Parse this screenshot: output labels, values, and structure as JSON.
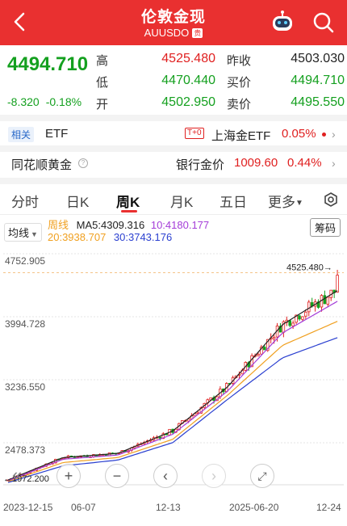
{
  "header": {
    "title": "伦敦金现",
    "code": "AUUSDO",
    "tag": "贵"
  },
  "quote": {
    "price": "4494.710",
    "change": "-8.320",
    "change_pct": "-0.18%",
    "high_label": "高",
    "high": "4525.480",
    "low_label": "低",
    "low": "4470.440",
    "open_label": "开",
    "open": "4502.950",
    "prev_close_label": "昨收",
    "prev_close": "4503.030",
    "bid_label": "买价",
    "bid": "4494.710",
    "ask_label": "卖价",
    "ask": "4495.550"
  },
  "related": {
    "tag": "相关",
    "etf": "ETF",
    "t0": "T+0",
    "sh_etf": "上海金ETF",
    "sh_pct": "0.05%"
  },
  "gold": {
    "name": "同花顺黄金",
    "bank_label": "银行金价",
    "bank_price": "1009.60",
    "bank_pct": "0.44%"
  },
  "tabs": [
    "分时",
    "日K",
    "周K",
    "月K",
    "五日",
    "更多"
  ],
  "indicator": {
    "selector": "均线",
    "button": "筹码",
    "ma_label": "周线",
    "ma5": "MA5:4309.316",
    "ma10": "10:4180.177",
    "ma20": "20:3938.707",
    "ma30": "30:3743.176"
  },
  "colors": {
    "up": "#e02020",
    "down": "#14a01f",
    "ma5": "#222222",
    "ma10": "#a43cd8",
    "ma20": "#f0a020",
    "ma30": "#2a3fd0",
    "header": "#e93030"
  },
  "chart_data": {
    "type": "candlestick",
    "y_ticks": [
      "4752.905",
      "3994.728",
      "3236.550",
      "2478.373"
    ],
    "ylim": [
      1972.2,
      4752.905
    ],
    "high_marker": "4525.480",
    "low_marker": "1972.200",
    "x_labels": [
      "2023-12-15",
      "06-07",
      "12-13",
      "2025-06-20",
      "12-24"
    ],
    "series": [
      {
        "name": "MA5",
        "values": [
          2030,
          2300,
          2350,
          2620,
          3150,
          3900,
          4309
        ]
      },
      {
        "name": "MA10",
        "values": [
          2020,
          2280,
          2330,
          2580,
          3100,
          3800,
          4180
        ]
      },
      {
        "name": "MA20",
        "values": [
          2010,
          2240,
          2300,
          2520,
          3050,
          3650,
          3939
        ]
      },
      {
        "name": "MA30",
        "values": [
          2000,
          2200,
          2270,
          2480,
          3000,
          3500,
          3743
        ]
      }
    ]
  }
}
